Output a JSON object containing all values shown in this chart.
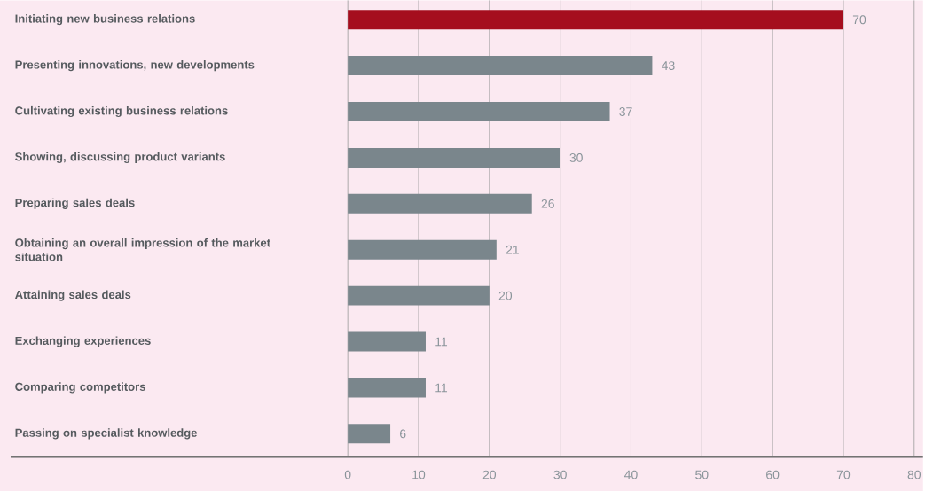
{
  "chart_data": {
    "type": "bar",
    "orientation": "horizontal",
    "categories": [
      "Initiating new business relations",
      "Presenting innovations, new developments",
      "Cultivating existing business relations",
      "Showing, discussing product variants",
      "Preparing sales deals",
      "Obtaining an overall impression of the market situation",
      "Attaining sales deals",
      "Exchanging experiences",
      "Comparing competitors",
      "Passing on specialist knowledge"
    ],
    "values": [
      70,
      43,
      37,
      30,
      26,
      21,
      20,
      11,
      11,
      6
    ],
    "colors": [
      "#a50e1e",
      "#7a868c",
      "#7a868c",
      "#7a868c",
      "#7a868c",
      "#7a868c",
      "#7a868c",
      "#7a868c",
      "#7a868c",
      "#7a868c"
    ],
    "xlim": [
      0,
      80
    ],
    "xticks": [
      0,
      10,
      20,
      30,
      40,
      50,
      60,
      70,
      80
    ],
    "grid": "x",
    "data_labels": true
  }
}
